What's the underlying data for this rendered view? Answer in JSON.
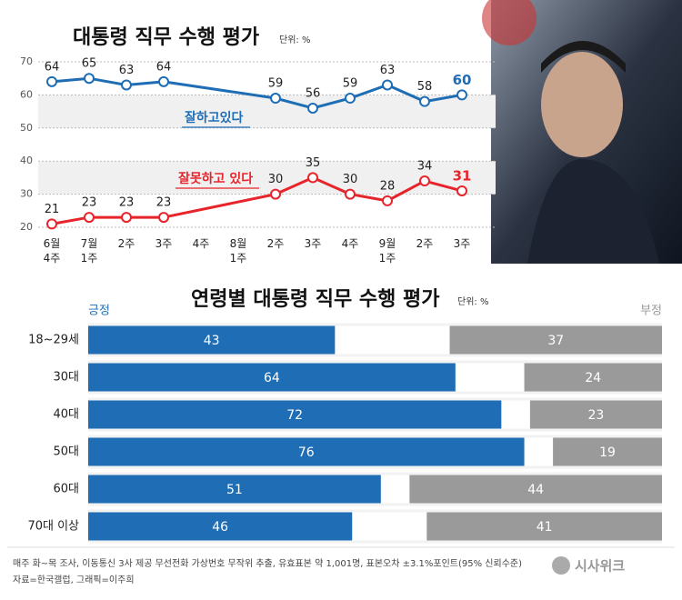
{
  "chart_data": [
    {
      "type": "line",
      "title": "대통령 직무 수행 평가",
      "unit": "단위: %",
      "categories": [
        "6월 4주",
        "7월 1주",
        "2주",
        "3주",
        "4주",
        "8월 1주",
        "2주",
        "3주",
        "4주",
        "9월 1주",
        "2주",
        "3주"
      ],
      "series": [
        {
          "name": "잘하고있다",
          "color": "#1f6db5",
          "values": [
            64,
            65,
            63,
            64,
            null,
            null,
            59,
            56,
            59,
            63,
            58,
            60
          ]
        },
        {
          "name": "잘못하고 있다",
          "color": "#e8242b",
          "values": [
            21,
            23,
            23,
            23,
            null,
            null,
            30,
            35,
            30,
            28,
            34,
            31
          ]
        }
      ],
      "ylim": [
        20,
        70
      ],
      "yticks": [
        20,
        30,
        40,
        50,
        60,
        70
      ],
      "grid": true
    },
    {
      "type": "bar",
      "orientation": "horizontal",
      "title": "연령별 대통령 직무 수행 평가",
      "unit": "단위: %",
      "categories": [
        "18~29세",
        "30대",
        "40대",
        "50대",
        "60대",
        "70대 이상"
      ],
      "series": [
        {
          "name": "긍정",
          "color": "#1f6db5",
          "values": [
            43,
            64,
            72,
            76,
            51,
            46
          ]
        },
        {
          "name": "부정",
          "color": "#9a9a9a",
          "values": [
            37,
            24,
            23,
            19,
            44,
            41
          ]
        }
      ],
      "xlim": [
        0,
        100
      ]
    }
  ],
  "footer": {
    "note": "매주 화~목 조사, 이동통신 3사 제공 무선전화 가상번호 무작위 추출, 유효표본 약 1,001명, 표본오차 ±3.1%포인트(95% 신뢰수준)",
    "source": "자료=한국갤럽, 그래픽=이주희"
  },
  "logo": "시사위크"
}
